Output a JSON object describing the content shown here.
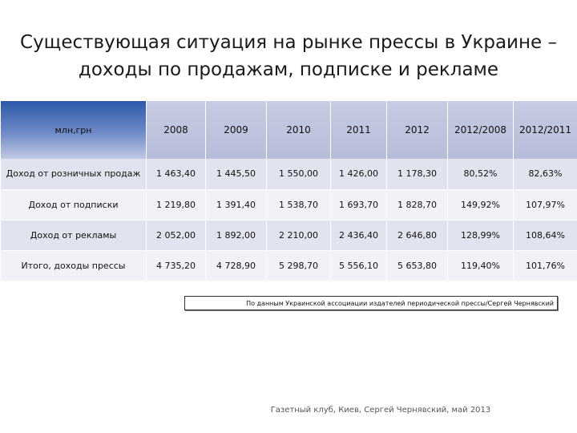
{
  "title": {
    "line1": "Существующая ситуация на рынке прессы в Украине –",
    "line2": "доходы по продажам, подписке и рекламе"
  },
  "table": {
    "headers": [
      "млн,грн",
      "2008",
      "2009",
      "2010",
      "2011",
      "2012",
      "2012/2008",
      "2012/2011"
    ],
    "rows": [
      [
        "Доход от розничных продаж",
        "1 463,40",
        "1 445,50",
        "1 550,00",
        "1 426,00",
        "1 178,30",
        "80,52%",
        "82,63%"
      ],
      [
        "Доход от подписки",
        "1 219,80",
        "1 391,40",
        "1 538,70",
        "1 693,70",
        "1 828,70",
        "149,92%",
        "107,97%"
      ],
      [
        "Доход от рекламы",
        "2 052,00",
        "1 892,00",
        "2 210,00",
        "2 436,40",
        "2 646,80",
        "128,99%",
        "108,64%"
      ],
      [
        "Итого, доходы прессы",
        "4 735,20",
        "4 728,90",
        "5 298,70",
        "5 556,10",
        "5 653,80",
        "119,40%",
        "101,76%"
      ]
    ]
  },
  "source_note": "По данным Украинской ассоциации издателей периодической прессы/Сергей Чернявский",
  "footer": "Газетный клуб, Киев, Сергей Чернявский, май 2013",
  "colors": {
    "header_bg": "#c7cce3",
    "header_first_top": "#2c58a8",
    "row_odd": "#e1e3ee",
    "row_even": "#f1f2f7"
  }
}
